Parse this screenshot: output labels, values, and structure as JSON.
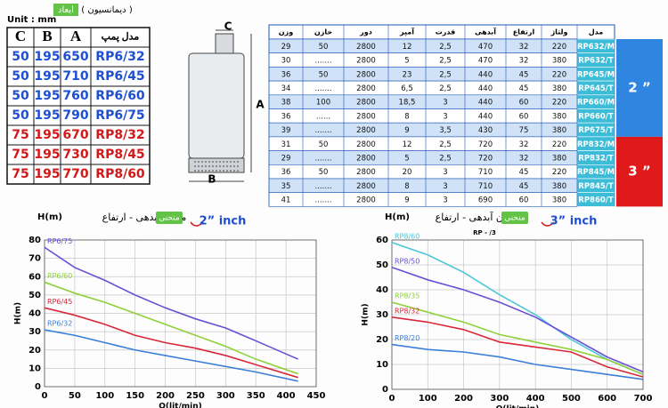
{
  "dimensions": {
    "title": "ابعاد",
    "subtitle": "( ديمانسيون )",
    "unit": "Unit : mm",
    "headers": [
      "C",
      "B",
      "A",
      "مدل پمپ"
    ],
    "rows": [
      [
        50,
        195,
        650,
        "RP6/32"
      ],
      [
        50,
        195,
        710,
        "RP6/45"
      ],
      [
        50,
        195,
        760,
        "RP6/60"
      ],
      [
        50,
        195,
        790,
        "RP6/75"
      ],
      [
        75,
        195,
        670,
        "RP8/32"
      ],
      [
        75,
        195,
        730,
        "RP8/45"
      ],
      [
        75,
        195,
        770,
        "RP8/60"
      ]
    ]
  },
  "diagram": {
    "labels": [
      "C",
      "A",
      "B"
    ]
  },
  "specs": {
    "headers": [
      "وزن",
      "خازن",
      "دور",
      "آمپر",
      "قدرت",
      "آبدهی",
      "ارتفاع",
      "ولتاژ",
      "مدل"
    ],
    "rows": [
      [
        "29",
        "50",
        "2800",
        "12",
        "2,5",
        "470",
        "32",
        "220",
        "RP632/M"
      ],
      [
        "30",
        ".......",
        "2800",
        "5",
        "2,5",
        "470",
        "32",
        "380",
        "RP632/T"
      ],
      [
        "36",
        "50",
        "2800",
        "23",
        "2,5",
        "440",
        "45",
        "220",
        "RP645/M"
      ],
      [
        "34",
        ".......",
        "2800",
        "6,5",
        "2,5",
        "440",
        "45",
        "380",
        "RP645/T"
      ],
      [
        "38",
        "100",
        "2800",
        "18,5",
        "3",
        "440",
        "60",
        "220",
        "RP660/M"
      ],
      [
        "36",
        "......",
        "2800",
        "8",
        "3",
        "440",
        "60",
        "380",
        "RP660/T"
      ],
      [
        "39",
        ".......",
        "2800",
        "9",
        "3,5",
        "430",
        "75",
        "380",
        "RP675/T"
      ],
      [
        "31",
        "50",
        "2800",
        "12",
        "2,5",
        "720",
        "32",
        "220",
        "RP832/M"
      ],
      [
        "29",
        ".......",
        "2800",
        "5",
        "2,5",
        "720",
        "32",
        "380",
        "RP832/T"
      ],
      [
        "36",
        "50",
        "2800",
        "20",
        "3",
        "710",
        "45",
        "220",
        "RP845/M"
      ],
      [
        "35",
        ".......",
        "2800",
        "8",
        "3",
        "710",
        "45",
        "380",
        "RP845/T"
      ],
      [
        "41",
        ".......",
        "2800",
        "9",
        "3",
        "690",
        "60",
        "380",
        "RP860/T"
      ]
    ],
    "groups": [
      "2 ”",
      "3 ”"
    ]
  },
  "chart_data": [
    {
      "type": "line",
      "title": "میزان آبدهی - ارتفاع",
      "badge": "منحنی",
      "subtitle": "2” inch",
      "y_title": "H(m)",
      "ylabel": "H(m)",
      "xlabel": "Q(lit/min)",
      "grid": true,
      "x": [
        0,
        50,
        100,
        150,
        200,
        250,
        300,
        350,
        420
      ],
      "xlim": [
        0,
        450
      ],
      "xticks": [
        0,
        50,
        100,
        150,
        200,
        250,
        300,
        350,
        400,
        450
      ],
      "ylim": [
        0,
        80
      ],
      "yticks": [
        0,
        10,
        20,
        30,
        40,
        50,
        60,
        70,
        80
      ],
      "series": [
        {
          "name": "RP6/75",
          "color": "#6a4fd6",
          "values": [
            76,
            65,
            58,
            50,
            43,
            37,
            32,
            25,
            15
          ]
        },
        {
          "name": "RP6/60",
          "color": "#8fd13a",
          "values": [
            57,
            51,
            46,
            40,
            34,
            28,
            22,
            15,
            7
          ]
        },
        {
          "name": "RP6/45",
          "color": "#d8283a",
          "values": [
            43,
            39,
            34,
            28,
            24,
            21,
            17,
            12,
            5
          ]
        },
        {
          "name": "RP6/32",
          "color": "#3b7fd9",
          "values": [
            31,
            28,
            24,
            20,
            17,
            14,
            11,
            8,
            3
          ]
        }
      ]
    },
    {
      "type": "line",
      "title": "میزان آبدهی - ارتفاع",
      "badge": "منحنی",
      "subtitle": "3” inch",
      "y_title": "H(m)",
      "note": "RP - /3",
      "ylabel": "H(m)",
      "xlabel": "Q(lit/min)",
      "grid": true,
      "x": [
        0,
        100,
        200,
        300,
        400,
        500,
        600,
        700
      ],
      "xlim": [
        0,
        700
      ],
      "xticks": [
        0,
        100,
        200,
        300,
        400,
        500,
        600,
        700
      ],
      "ylim": [
        0,
        60
      ],
      "yticks": [
        0,
        10,
        20,
        30,
        40,
        50,
        60
      ],
      "series": [
        {
          "name": "RP8/60",
          "color": "#4cc6d8",
          "values": [
            59,
            54,
            47,
            38,
            30,
            20,
            12,
            6
          ]
        },
        {
          "name": "RP8/50",
          "color": "#6a4fd6",
          "values": [
            49,
            44,
            40,
            35,
            29,
            21,
            13,
            7
          ]
        },
        {
          "name": "RP8/35",
          "color": "#8fd13a",
          "values": [
            35,
            31,
            27,
            22,
            19,
            16,
            12,
            6
          ]
        },
        {
          "name": "RP8/32",
          "color": "#d8283a",
          "values": [
            29,
            27,
            24,
            19,
            17,
            15,
            9,
            5
          ]
        },
        {
          "name": "RP8/20",
          "color": "#3b7fd9",
          "values": [
            18,
            16,
            15,
            13,
            10,
            8,
            6,
            4
          ]
        }
      ]
    }
  ]
}
